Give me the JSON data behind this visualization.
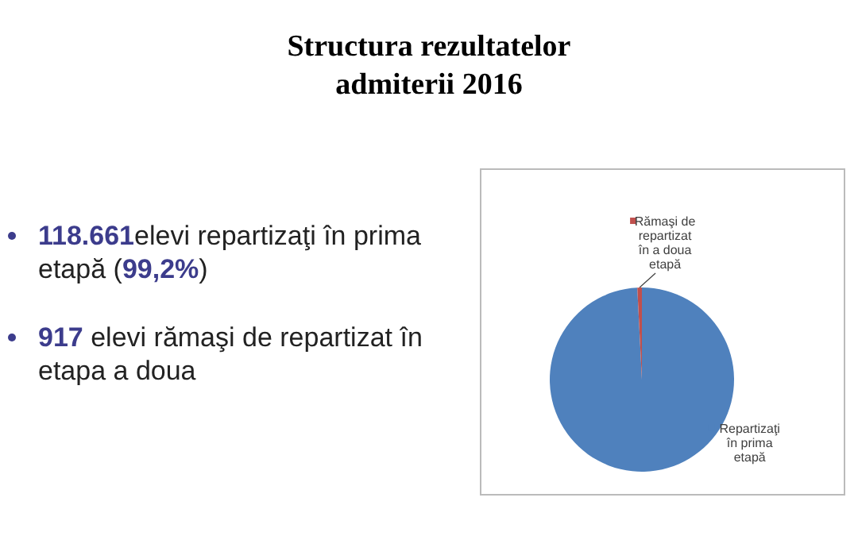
{
  "chart_data": {
    "type": "pie",
    "title": "Structura rezultatelor admiterii 2016",
    "categories": [
      "Repartizaţi în prima etapă",
      "Rămaşi de repartizat în a doua etapă"
    ],
    "values": [
      99.2,
      0.8
    ],
    "colors": [
      "#4f81bd",
      "#c0504d"
    ],
    "legend": "right",
    "annotations": [
      "118.661elevi repartizaţi în prima etapă (99,2%)",
      "917 elevi rămaşi de repartizat în etapa a doua"
    ]
  }
}
